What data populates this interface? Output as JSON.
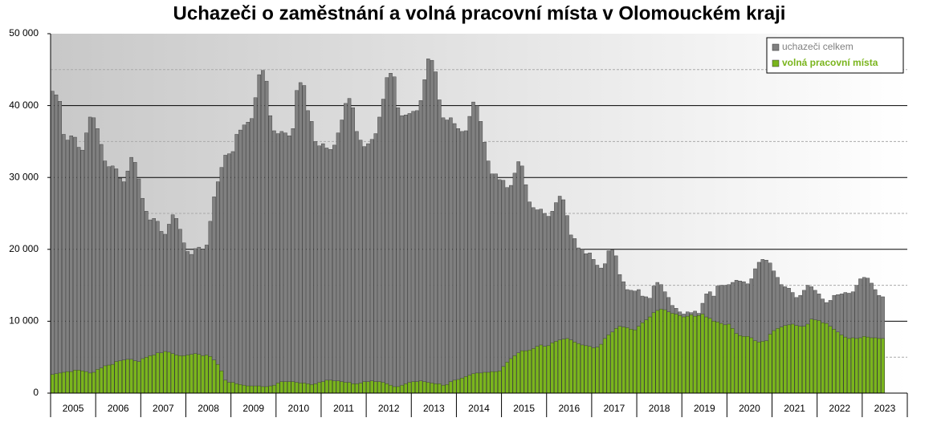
{
  "chart_data": {
    "type": "bar",
    "title": "Uchazeči o zaměstnání a volná pracovní místa v Olomouckém kraji",
    "categories": [
      "2005",
      "2006",
      "2007",
      "2008",
      "2009",
      "2010",
      "2011",
      "2012",
      "2013",
      "2014",
      "2015",
      "2016",
      "2017",
      "2018",
      "2019",
      "2020",
      "2021",
      "2022",
      "2023"
    ],
    "ylim": [
      0,
      50000
    ],
    "yticks": [
      {
        "value": 0,
        "label": "0"
      },
      {
        "value": 10000,
        "label": "10 000"
      },
      {
        "value": 20000,
        "label": "20 000"
      },
      {
        "value": 30000,
        "label": "30 000"
      },
      {
        "value": 40000,
        "label": "40 000"
      },
      {
        "value": 50000,
        "label": "50 000"
      }
    ],
    "grid": true,
    "legend": "top-right",
    "series": [
      {
        "name": "uchazeči celkem",
        "color": "#808080",
        "values": [
          [
            42000,
            41500,
            40600,
            36000,
            35200,
            35800,
            35600,
            34200,
            33800,
            36200,
            38400,
            38300
          ],
          [
            36800,
            34600,
            32300,
            31500,
            31600,
            31200,
            29900,
            29400,
            30900,
            32800,
            32100,
            29800
          ],
          [
            27100,
            25300,
            24100,
            24300,
            23900,
            22500,
            22100,
            23500,
            24800,
            24300,
            22800,
            20900
          ],
          [
            19700,
            19300,
            20100,
            20300,
            20000,
            20600,
            23900,
            27300,
            29400,
            31400,
            33100,
            33300
          ],
          [
            33600,
            36000,
            36600,
            37300,
            37700,
            38200,
            41100,
            44300,
            44900,
            43400,
            38600,
            36500
          ],
          [
            36100,
            36400,
            36200,
            35800,
            36800,
            42100,
            43200,
            42800,
            39300,
            37800,
            35000,
            34400
          ],
          [
            34700,
            34100,
            33900,
            34500,
            36200,
            38000,
            40300,
            41000,
            39700,
            36400,
            35200,
            34300
          ],
          [
            34700,
            35300,
            36100,
            38400,
            40900,
            43900,
            44500,
            44000,
            39700,
            38600,
            38700,
            38900
          ],
          [
            39200,
            39300,
            40700,
            43600,
            46500,
            46300,
            44700,
            40800,
            38300,
            38000,
            38300,
            37500
          ],
          [
            36800,
            36400,
            36500,
            38500,
            40500,
            40000,
            37800,
            34900,
            32300,
            30500,
            30500,
            29700
          ],
          [
            29600,
            28600,
            28900,
            30600,
            32200,
            31600,
            29000,
            26600,
            25800,
            25500,
            25600,
            25000
          ],
          [
            24600,
            25300,
            26500,
            27400,
            26900,
            24700,
            22000,
            21500,
            20200,
            20000,
            19400,
            19500
          ],
          [
            18600,
            17800,
            17400,
            18000,
            19800,
            19900,
            19100,
            16500,
            15500,
            14400,
            14300,
            14200
          ],
          [
            14400,
            13500,
            13400,
            13200,
            14900,
            15400,
            15100,
            14100,
            13300,
            12200,
            11800,
            11300
          ],
          [
            11000,
            11300,
            11200,
            11400,
            11100,
            12500,
            13800,
            14100,
            13500,
            14900,
            15000,
            15000
          ],
          [
            15100,
            15400,
            15700,
            15600,
            15500,
            15200,
            15900,
            17300,
            18200,
            18600,
            18500,
            18100
          ],
          [
            17000,
            16100,
            15100,
            14800,
            14600,
            14000,
            13300,
            13600,
            14300,
            15000,
            14800,
            14300
          ],
          [
            13800,
            13100,
            12600,
            12900,
            13600,
            13700,
            13800,
            14000,
            13900,
            14100,
            15000,
            15900
          ],
          [
            16100,
            16000,
            15300,
            14400,
            13600,
            13400
          ]
        ]
      },
      {
        "name": "volná pracovní místa",
        "color": "#7ab51d",
        "values": [
          [
            2600,
            2700,
            2800,
            2900,
            3000,
            3000,
            3200,
            3200,
            3100,
            3000,
            2800,
            2900
          ],
          [
            3300,
            3500,
            3800,
            3900,
            4000,
            4400,
            4500,
            4600,
            4700,
            4700,
            4500,
            4400
          ],
          [
            4800,
            5000,
            5200,
            5300,
            5600,
            5600,
            5800,
            5700,
            5500,
            5300,
            5200,
            5200
          ],
          [
            5300,
            5400,
            5500,
            5400,
            5200,
            5300,
            5100,
            4600,
            4000,
            3100,
            1800,
            1500
          ],
          [
            1500,
            1300,
            1200,
            1100,
            1000,
            1000,
            1000,
            1000,
            900,
            900,
            1000,
            1100
          ],
          [
            1400,
            1600,
            1600,
            1600,
            1600,
            1500,
            1400,
            1400,
            1300,
            1200,
            1300,
            1500
          ],
          [
            1600,
            1800,
            1800,
            1700,
            1700,
            1600,
            1500,
            1500,
            1300,
            1300,
            1400,
            1600
          ],
          [
            1600,
            1700,
            1600,
            1600,
            1500,
            1300,
            1100,
            900,
            900,
            1100,
            1300,
            1500
          ],
          [
            1600,
            1600,
            1700,
            1600,
            1500,
            1400,
            1300,
            1300,
            1100,
            1200,
            1600,
            1800
          ],
          [
            1900,
            2100,
            2300,
            2500,
            2700,
            2800,
            2800,
            2900,
            2900,
            3000,
            3000,
            3100
          ],
          [
            3700,
            4300,
            4800,
            5200,
            5600,
            5900,
            5900,
            6000,
            6200,
            6500,
            6700,
            6500
          ],
          [
            6600,
            7000,
            7200,
            7400,
            7500,
            7600,
            7400,
            7100,
            6900,
            6700,
            6600,
            6500
          ],
          [
            6300,
            6400,
            6800,
            7600,
            8100,
            8500,
            9000,
            9300,
            9200,
            9100,
            8900,
            8800
          ],
          [
            9300,
            9800,
            10200,
            10600,
            11200,
            11500,
            11700,
            11600,
            11300,
            11100,
            11000,
            10800
          ],
          [
            10600,
            10700,
            10900,
            10700,
            10800,
            11000,
            10600,
            10400,
            10000,
            9900,
            9700,
            9500
          ],
          [
            9600,
            9000,
            8300,
            8000,
            7900,
            7900,
            7700,
            7300,
            7100,
            7200,
            7300,
            8200
          ],
          [
            8700,
            9000,
            9200,
            9400,
            9500,
            9600,
            9400,
            9300,
            9300,
            9600,
            10300,
            10200
          ],
          [
            10100,
            9800,
            9700,
            9300,
            8900,
            8500,
            8100,
            7800,
            7600,
            7700,
            7600,
            7700
          ],
          [
            7900,
            7800,
            7700,
            7700,
            7600,
            7600
          ]
        ]
      }
    ]
  }
}
